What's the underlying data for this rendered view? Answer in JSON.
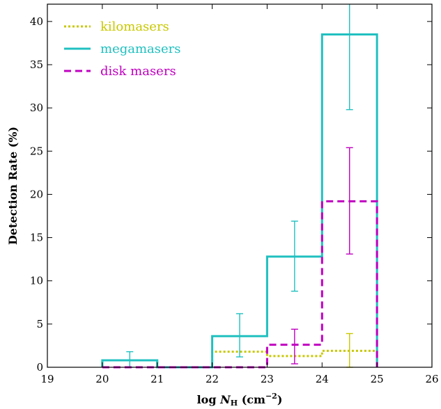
{
  "chart_data": {
    "type": "histogram",
    "xlabel_prefix": "log ",
    "xlabel_var": "N",
    "xlabel_sub": "H",
    "xlabel_unit": " (cm",
    "xlabel_exp": "−2",
    "xlabel_close": ")",
    "ylabel": "Detection Rate  (%)",
    "xlim": [
      19,
      26
    ],
    "ylim": [
      0,
      42
    ],
    "xticks": [
      19,
      20,
      21,
      22,
      23,
      24,
      25,
      26
    ],
    "yticks": [
      0,
      5,
      10,
      15,
      20,
      25,
      30,
      35,
      40
    ],
    "legend_position": "top-left",
    "series": [
      {
        "name": "kilomasers",
        "color": "#c8c800",
        "style": "dotted",
        "bins": [
          [
            20,
            21,
            0.8
          ],
          [
            21,
            22,
            0
          ],
          [
            22,
            23,
            1.8
          ],
          [
            23,
            24,
            1.3
          ],
          [
            24,
            25,
            1.9
          ]
        ],
        "errorbars": [
          [
            24.5,
            1.9,
            0,
            3.9
          ]
        ]
      },
      {
        "name": "megamasers",
        "color": "#20c0c0",
        "style": "solid",
        "bins": [
          [
            20,
            21,
            0.8
          ],
          [
            21,
            22,
            0
          ],
          [
            22,
            23,
            3.6
          ],
          [
            23,
            24,
            12.8
          ],
          [
            24,
            25,
            38.5
          ]
        ],
        "errorbars": [
          [
            20.5,
            0.8,
            0,
            1.8
          ],
          [
            22.5,
            3.6,
            1.2,
            6.2
          ],
          [
            23.5,
            12.8,
            8.8,
            16.9
          ],
          [
            24.5,
            38.5,
            29.8,
            42.5
          ]
        ]
      },
      {
        "name": "disk masers",
        "color": "#c000c0",
        "style": "dashed",
        "bins": [
          [
            20,
            21,
            0
          ],
          [
            21,
            22,
            0
          ],
          [
            22,
            23,
            0
          ],
          [
            23,
            24,
            2.6
          ],
          [
            24,
            25,
            19.2
          ]
        ],
        "errorbars": [
          [
            23.5,
            2.6,
            0.4,
            4.4
          ],
          [
            24.5,
            19.2,
            13.1,
            25.4
          ]
        ]
      }
    ]
  }
}
